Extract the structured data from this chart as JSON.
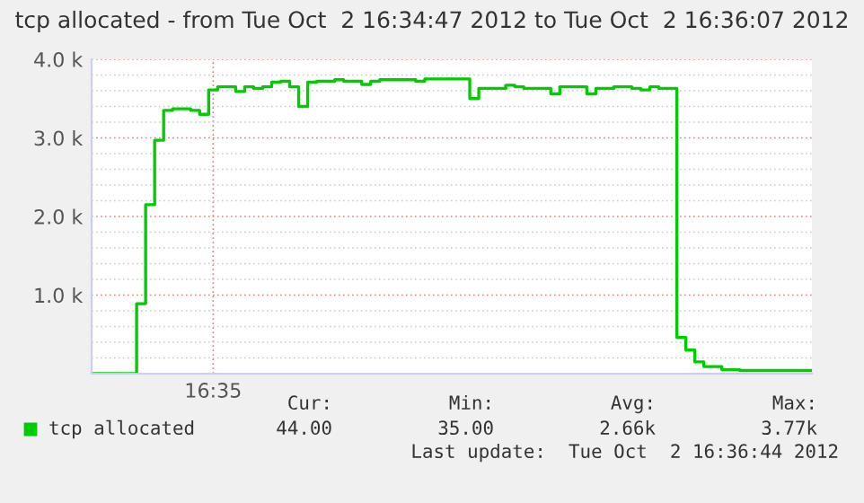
{
  "chart_data": {
    "type": "step",
    "title": "tcp allocated - from Tue Oct  2 16:34:47 2012 to Tue Oct  2 16:36:07 2012",
    "categories": [
      null,
      null,
      null,
      null,
      null,
      null,
      null,
      null,
      null,
      null,
      null,
      null,
      null,
      "16:35",
      null,
      null,
      null,
      null,
      null,
      null,
      null,
      null,
      null,
      null,
      null,
      null,
      null,
      null,
      null,
      null,
      null,
      null,
      null,
      null,
      null,
      null,
      null,
      null,
      null,
      null,
      null,
      null,
      null,
      null,
      null,
      null,
      null,
      null,
      null,
      null,
      null,
      null,
      null,
      null,
      null,
      null,
      null,
      null,
      null,
      null,
      null,
      null,
      null,
      null,
      null,
      null,
      null,
      null,
      null,
      null,
      null,
      null,
      null,
      null,
      null,
      null,
      null,
      null,
      null,
      null
    ],
    "series": [
      {
        "name": "tcp allocated",
        "color": "#00cc00",
        "values": [
          0,
          0,
          0,
          0,
          0,
          890,
          2150,
          2970,
          3350,
          3370,
          3370,
          3350,
          3300,
          3610,
          3650,
          3650,
          3590,
          3650,
          3630,
          3650,
          3710,
          3720,
          3650,
          3400,
          3710,
          3720,
          3720,
          3740,
          3720,
          3720,
          3680,
          3720,
          3740,
          3740,
          3740,
          3740,
          3720,
          3750,
          3750,
          3750,
          3750,
          3750,
          3500,
          3630,
          3630,
          3630,
          3670,
          3650,
          3630,
          3630,
          3630,
          3560,
          3650,
          3650,
          3650,
          3560,
          3630,
          3630,
          3650,
          3650,
          3630,
          3610,
          3650,
          3630,
          3630,
          460,
          300,
          150,
          90,
          90,
          50,
          50,
          40,
          40,
          40,
          40,
          40,
          40,
          40,
          40
        ]
      }
    ],
    "ylim": [
      0,
      4000
    ],
    "yticks": [
      {
        "value": 200,
        "label": null
      },
      {
        "value": 400,
        "label": null
      },
      {
        "value": 600,
        "label": null
      },
      {
        "value": 800,
        "label": null
      },
      {
        "value": 1000,
        "label": "1.0 k"
      },
      {
        "value": 1200,
        "label": null
      },
      {
        "value": 1400,
        "label": null
      },
      {
        "value": 1600,
        "label": null
      },
      {
        "value": 1800,
        "label": null
      },
      {
        "value": 2000,
        "label": "2.0 k"
      },
      {
        "value": 2200,
        "label": null
      },
      {
        "value": 2400,
        "label": null
      },
      {
        "value": 2600,
        "label": null
      },
      {
        "value": 2800,
        "label": null
      },
      {
        "value": 3000,
        "label": "3.0 k"
      },
      {
        "value": 3200,
        "label": null
      },
      {
        "value": 3400,
        "label": null
      },
      {
        "value": 3600,
        "label": null
      },
      {
        "value": 3800,
        "label": null
      },
      {
        "value": 4000,
        "label": "4.0 k"
      }
    ],
    "grid": true,
    "legend": "bottom",
    "line_style": "solid",
    "marker": "none",
    "annotations": [
      "Cur:",
      "Min:",
      "Avg:",
      "Max:",
      "44.00",
      "35.00",
      "2.66k",
      "3.77k",
      "Last update:  Tue Oct  2 16:36:44 2012"
    ]
  }
}
